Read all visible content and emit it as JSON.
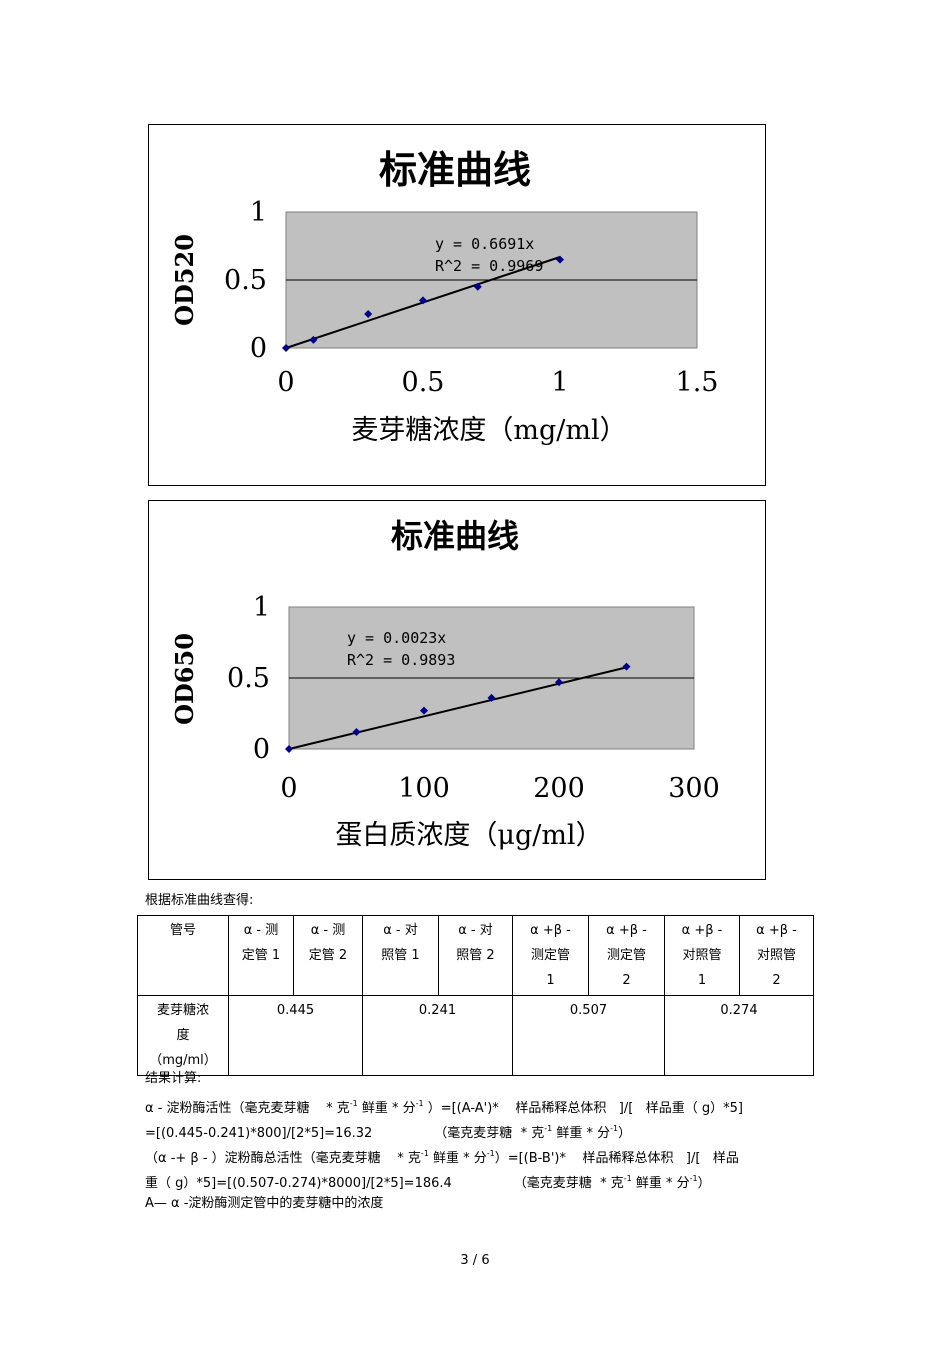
{
  "chart_data": [
    {
      "type": "scatter",
      "title": "标准曲线",
      "xlabel": "麦芽糖浓度（mg/ml）",
      "ylabel": "OD520",
      "xlim": [
        0,
        1.5
      ],
      "ylim": [
        0,
        1
      ],
      "xticks": [
        "0",
        "0.5",
        "1",
        "1.5"
      ],
      "yticks": [
        "0",
        "0.5",
        "1"
      ],
      "points": [
        [
          0,
          0
        ],
        [
          0.1,
          0.06
        ],
        [
          0.3,
          0.25
        ],
        [
          0.5,
          0.35
        ],
        [
          0.7,
          0.45
        ],
        [
          1.0,
          0.65
        ]
      ],
      "trendline": {
        "slope": 0.6691,
        "equation": "y = 0.6691x",
        "r2": "R^2 = 0.9969"
      },
      "grid": "horizontal",
      "plot_bg": "#c0c0c0",
      "marker_color": "#00008b"
    },
    {
      "type": "scatter",
      "title": "标准曲线",
      "xlabel": "蛋白质浓度（μg/ml）",
      "ylabel": "OD650",
      "xlim": [
        0,
        300
      ],
      "ylim": [
        0,
        1
      ],
      "xticks": [
        "0",
        "100",
        "200",
        "300"
      ],
      "yticks": [
        "0",
        "0.5",
        "1"
      ],
      "points": [
        [
          0,
          0
        ],
        [
          50,
          0.12
        ],
        [
          100,
          0.27
        ],
        [
          150,
          0.36
        ],
        [
          200,
          0.47
        ],
        [
          250,
          0.58
        ]
      ],
      "trendline": {
        "slope": 0.0023,
        "equation": "y = 0.0023x",
        "r2": "R^2 = 0.9893"
      },
      "grid": "horizontal",
      "plot_bg": "#c0c0c0",
      "marker_color": "#00008b"
    }
  ],
  "intro": "根据标准曲线查得:",
  "table": {
    "header_label": "管号",
    "headers": [
      [
        "α - 测",
        "定管 1"
      ],
      [
        "α - 测",
        "定管 2"
      ],
      [
        "α - 对",
        "照管 1"
      ],
      [
        "α - 对",
        "照管 2"
      ],
      [
        "α +β -",
        "测定管",
        "1"
      ],
      [
        "α +β -",
        "测定管",
        "2"
      ],
      [
        "α +β -",
        "对照管",
        "1"
      ],
      [
        "α +β -",
        "对照管",
        "2"
      ]
    ],
    "row_label": [
      "麦芽糖浓",
      "度",
      "（mg/ml）"
    ],
    "values": [
      "0.445",
      "0.241",
      "0.507",
      "0.274"
    ]
  },
  "calc": {
    "heading": "结果计算:",
    "line1a": "α - 淀粉酶活性（毫克麦芽糖",
    "line1b": "* 克",
    "line1c": "鲜重 * 分",
    "line1d": "）=[(A-A')*",
    "line1e": "样品稀释总体积",
    "line1f": "]/[",
    "line1g": "样品重（",
    "line1h": "g）*5]",
    "line2a": "=[(0.445-0.241)*800]/[2*5]=16.32",
    "line2b": "（毫克麦芽糖",
    "line2c": "* 克",
    "line2d": "鲜重 * 分",
    "line2e": "）",
    "line3a": "（α -+ β - ）淀粉酶总活性（毫克麦芽糖",
    "line3b": "* 克",
    "line3c": "鲜重 * 分",
    "line3d": "）=[(B-B')*",
    "line3e": "样品稀释总体积",
    "line3f": "]/[",
    "line3g": "样品",
    "line4a": "重（ g）*5]=[(0.507-0.274)*8000]/[2*5]=186.4",
    "line4b": "（毫克麦芽糖",
    "line4c": "* 克",
    "line4d": "鲜重 * 分",
    "line4e": "）",
    "line5": "A— α -淀粉酶测定管中的麦芽糖中的浓度",
    "sup": "-1"
  },
  "page_number": "3 / 6"
}
